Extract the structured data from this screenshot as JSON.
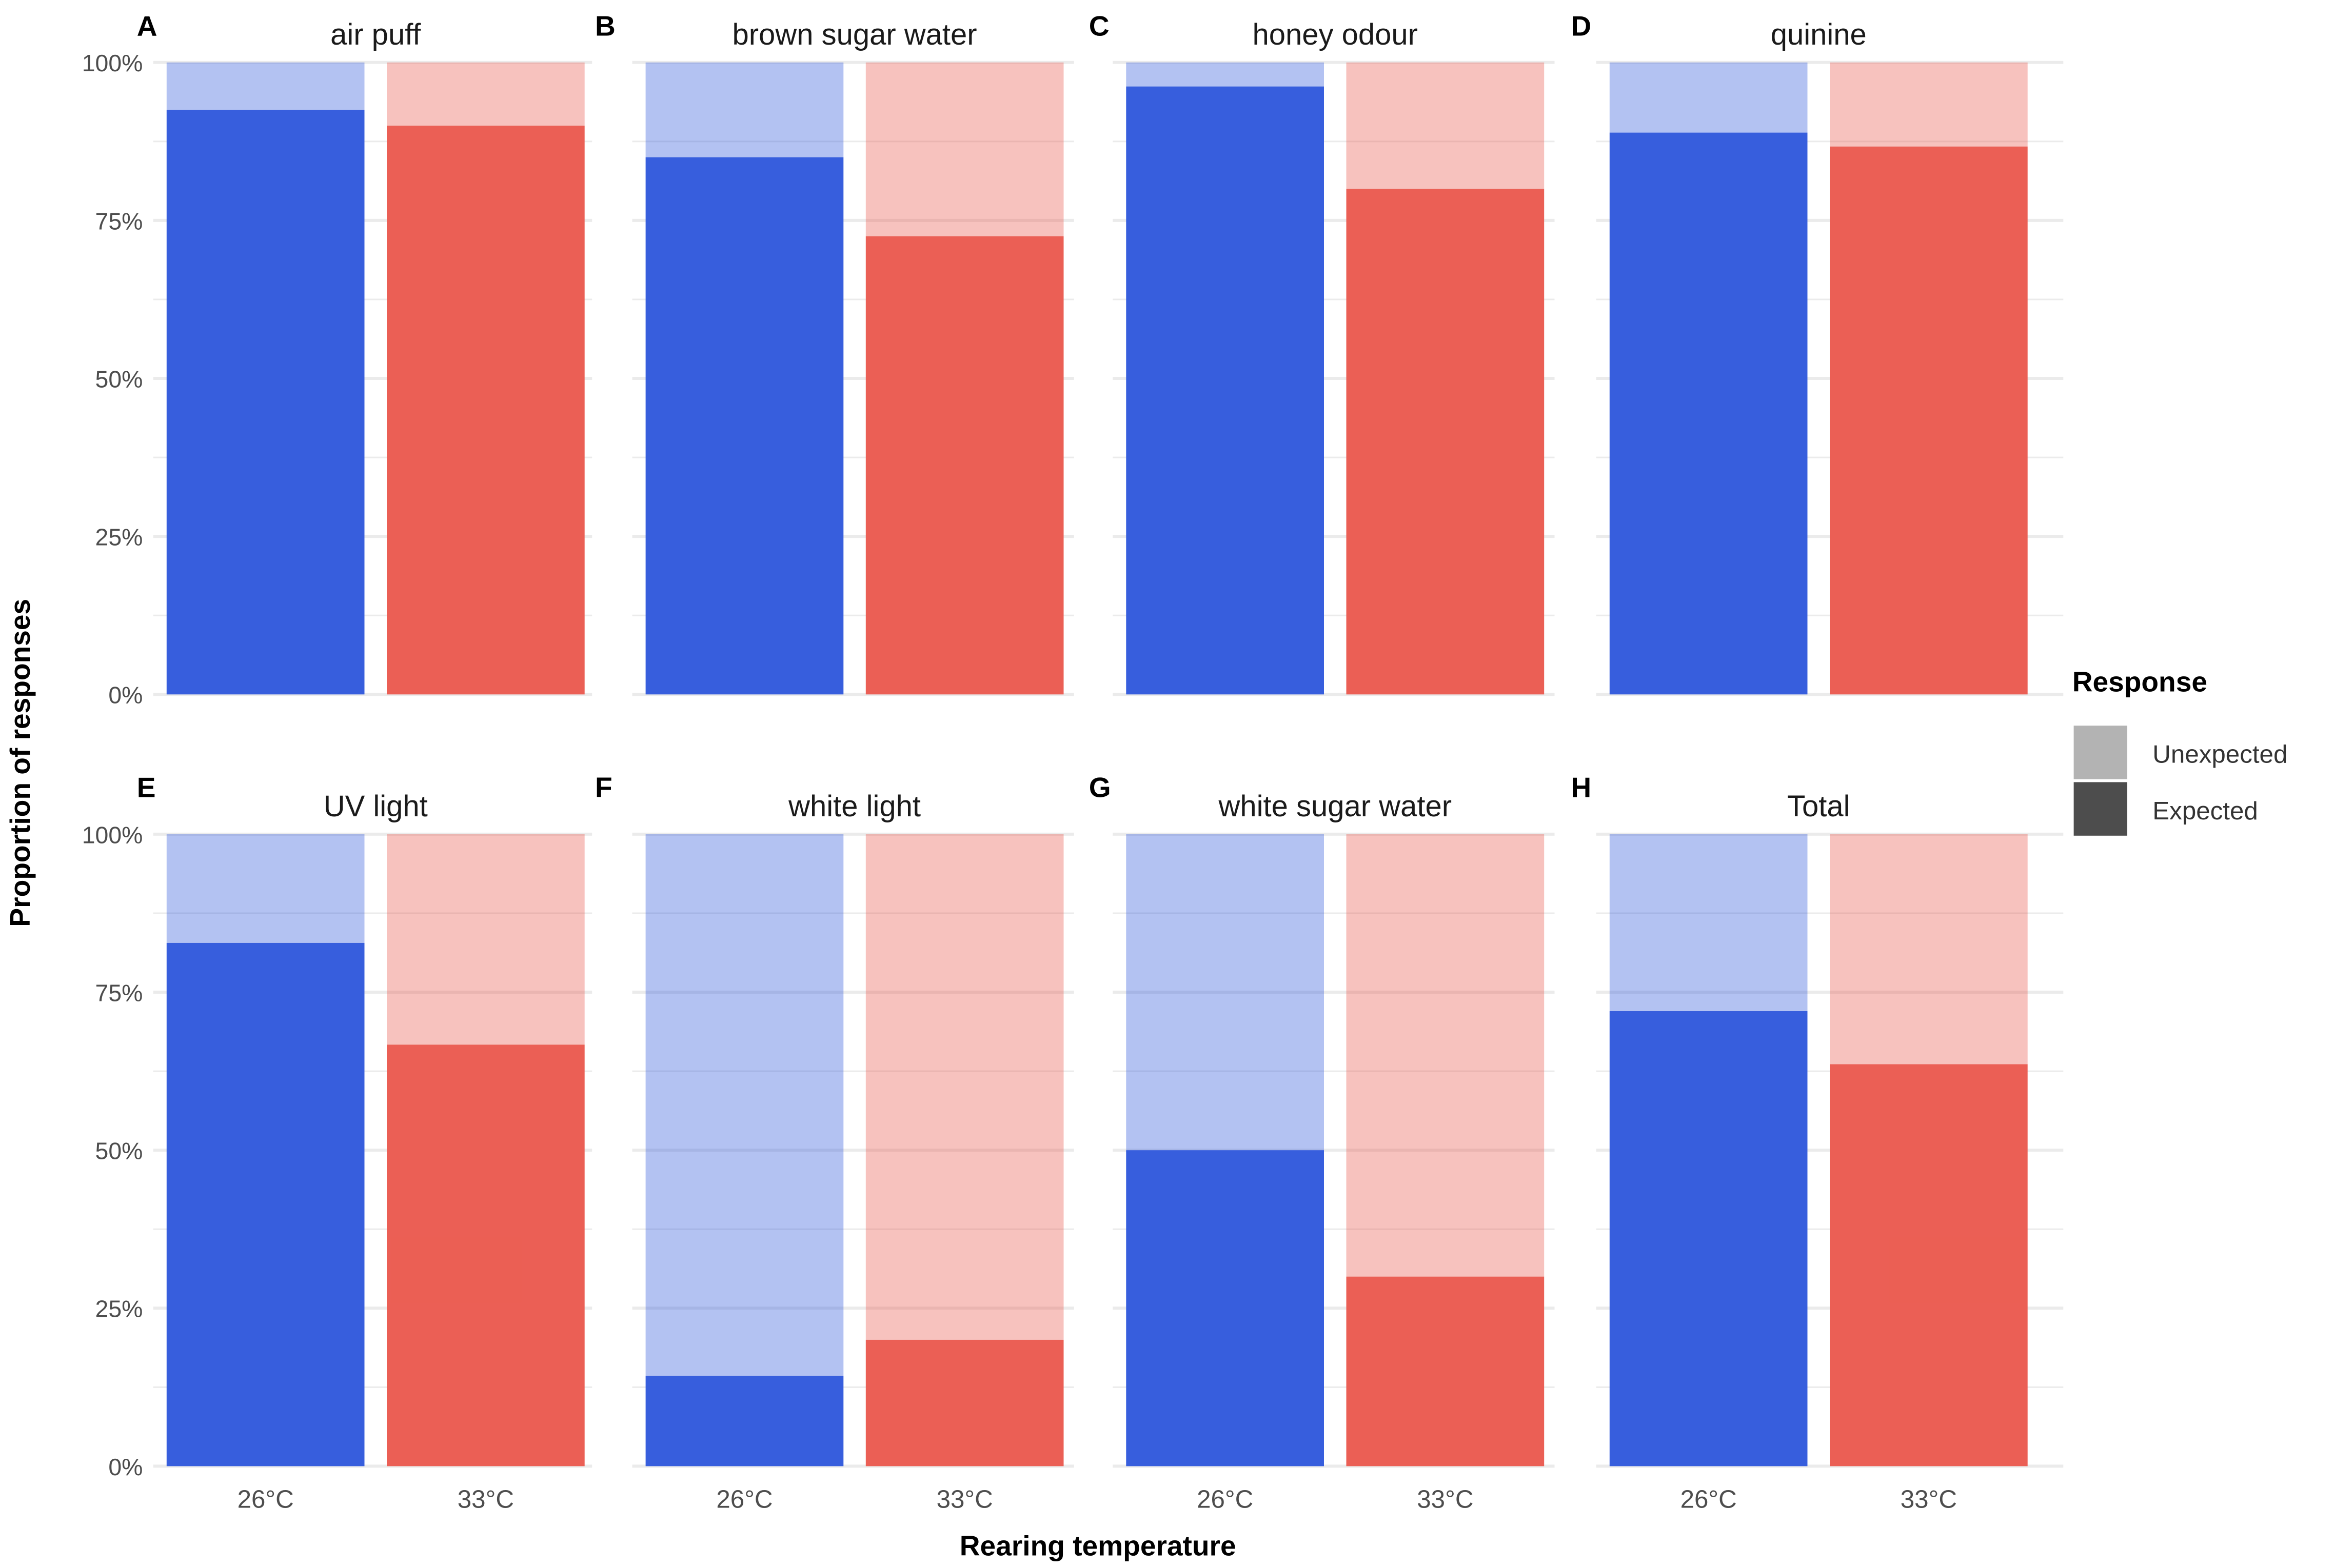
{
  "chart_data": {
    "type": "bar",
    "subtype": "stacked-proportion-facets",
    "xlabel": "Rearing temperature",
    "ylabel": "Proportion of responses",
    "ylim": [
      0,
      100
    ],
    "yticks": [
      "0%",
      "25%",
      "50%",
      "75%",
      "100%"
    ],
    "categories": [
      "26°C",
      "33°C"
    ],
    "colors": {
      "26°C": "#3159dc",
      "33°C": "#ea5a4f"
    },
    "legend": {
      "title": "Response",
      "position": "right",
      "items": [
        {
          "label": "Unexpected",
          "color": "#b3b3b3"
        },
        {
          "label": "Expected",
          "color": "#4d4d4d"
        }
      ]
    },
    "facets": [
      {
        "letter": "A",
        "title": "air puff",
        "expected": [
          92.5,
          90
        ]
      },
      {
        "letter": "B",
        "title": "brown sugar water",
        "expected": [
          85,
          72.5
        ]
      },
      {
        "letter": "C",
        "title": "honey odour",
        "expected": [
          96.2,
          80
        ]
      },
      {
        "letter": "D",
        "title": "quinine",
        "expected": [
          88.9,
          86.7
        ]
      },
      {
        "letter": "E",
        "title": "UV light",
        "expected": [
          82.8,
          66.7
        ]
      },
      {
        "letter": "F",
        "title": "white light",
        "expected": [
          14.3,
          20
        ]
      },
      {
        "letter": "G",
        "title": "white sugar water",
        "expected": [
          50,
          30
        ]
      },
      {
        "letter": "H",
        "title": "Total",
        "expected": [
          72,
          63.6
        ]
      }
    ]
  }
}
